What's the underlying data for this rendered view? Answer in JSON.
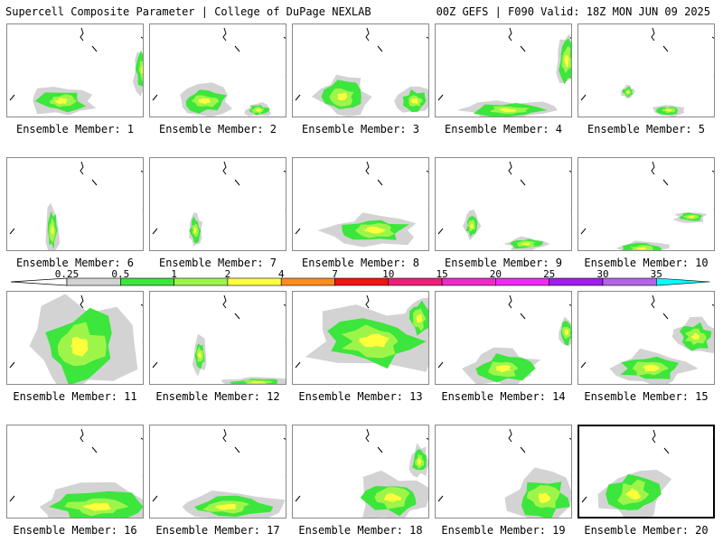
{
  "header": {
    "left": "Supercell Composite Parameter | College of DuPage NEXLAB",
    "right": "00Z GEFS | F090 Valid: 18Z MON JUN 09 2025"
  },
  "member_label_prefix": "Ensemble Member: ",
  "members": [
    {
      "number": "1"
    },
    {
      "number": "2"
    },
    {
      "number": "3"
    },
    {
      "number": "4"
    },
    {
      "number": "5"
    },
    {
      "number": "6"
    },
    {
      "number": "7"
    },
    {
      "number": "8"
    },
    {
      "number": "9"
    },
    {
      "number": "10"
    },
    {
      "number": "11"
    },
    {
      "number": "12"
    },
    {
      "number": "13"
    },
    {
      "number": "14"
    },
    {
      "number": "15"
    },
    {
      "number": "16"
    },
    {
      "number": "17"
    },
    {
      "number": "18"
    },
    {
      "number": "19"
    },
    {
      "number": "20",
      "selected": true
    }
  ],
  "legend": {
    "ticks": [
      "0.25",
      "0.5",
      "1",
      "2",
      "4",
      "7",
      "10",
      "15",
      "20",
      "25",
      "30",
      "35"
    ],
    "colors": [
      "#d3d3d3",
      "#3ce63c",
      "#9ef54a",
      "#ffff3c",
      "#ff8c1e",
      "#f01414",
      "#f01e78",
      "#f028c8",
      "#f028f5",
      "#a01ef0",
      "#b464e6",
      "#00ffff"
    ]
  }
}
